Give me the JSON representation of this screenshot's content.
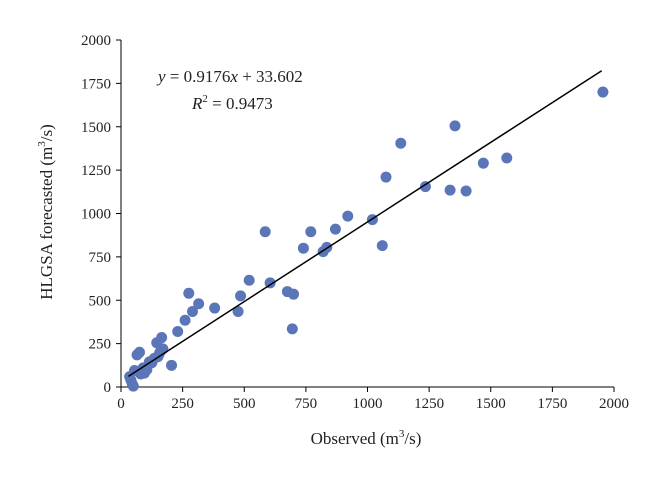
{
  "chart_data": {
    "type": "scatter",
    "xlabel_main": "Observed (m",
    "xlabel_sup": "3",
    "xlabel_end": "/s)",
    "ylabel_main": "HLGSA forecasted (m",
    "ylabel_sup": "3",
    "ylabel_end": "/s)",
    "xlim": [
      0,
      2000
    ],
    "ylim": [
      0,
      2000
    ],
    "xticks": [
      0,
      250,
      500,
      750,
      1000,
      1250,
      1500,
      1750,
      2000
    ],
    "yticks": [
      0,
      250,
      500,
      750,
      1000,
      1250,
      1500,
      1750,
      2000
    ],
    "grid": false,
    "marker_color": "#5b76b8",
    "trendline": {
      "slope": 0.9176,
      "intercept": 33.602,
      "x_start": 30,
      "x_end": 1950,
      "color": "#000000"
    },
    "equation": {
      "line1_y": "y",
      "line1_eq": " = 0.9176",
      "line1_x": "x",
      "line1_rest": " + 33.602",
      "line2_R": "R",
      "line2_sup": "2",
      "line2_rest": " = 0.9473"
    },
    "points": [
      {
        "x": 35,
        "y": 60
      },
      {
        "x": 40,
        "y": 40
      },
      {
        "x": 45,
        "y": 20
      },
      {
        "x": 50,
        "y": 5
      },
      {
        "x": 55,
        "y": 95
      },
      {
        "x": 65,
        "y": 185
      },
      {
        "x": 75,
        "y": 200
      },
      {
        "x": 80,
        "y": 75
      },
      {
        "x": 90,
        "y": 110
      },
      {
        "x": 95,
        "y": 80
      },
      {
        "x": 105,
        "y": 100
      },
      {
        "x": 115,
        "y": 145
      },
      {
        "x": 125,
        "y": 140
      },
      {
        "x": 135,
        "y": 165
      },
      {
        "x": 145,
        "y": 255
      },
      {
        "x": 150,
        "y": 175
      },
      {
        "x": 155,
        "y": 190
      },
      {
        "x": 160,
        "y": 205
      },
      {
        "x": 165,
        "y": 285
      },
      {
        "x": 170,
        "y": 220
      },
      {
        "x": 205,
        "y": 125
      },
      {
        "x": 230,
        "y": 320
      },
      {
        "x": 260,
        "y": 385
      },
      {
        "x": 275,
        "y": 540
      },
      {
        "x": 290,
        "y": 435
      },
      {
        "x": 315,
        "y": 480
      },
      {
        "x": 380,
        "y": 455
      },
      {
        "x": 475,
        "y": 435
      },
      {
        "x": 485,
        "y": 525
      },
      {
        "x": 520,
        "y": 615
      },
      {
        "x": 585,
        "y": 895
      },
      {
        "x": 605,
        "y": 600
      },
      {
        "x": 675,
        "y": 550
      },
      {
        "x": 695,
        "y": 335
      },
      {
        "x": 700,
        "y": 535
      },
      {
        "x": 740,
        "y": 800
      },
      {
        "x": 770,
        "y": 895
      },
      {
        "x": 820,
        "y": 780
      },
      {
        "x": 835,
        "y": 805
      },
      {
        "x": 870,
        "y": 910
      },
      {
        "x": 920,
        "y": 985
      },
      {
        "x": 1020,
        "y": 965
      },
      {
        "x": 1060,
        "y": 815
      },
      {
        "x": 1075,
        "y": 1210
      },
      {
        "x": 1135,
        "y": 1405
      },
      {
        "x": 1235,
        "y": 1155
      },
      {
        "x": 1335,
        "y": 1135
      },
      {
        "x": 1355,
        "y": 1505
      },
      {
        "x": 1400,
        "y": 1130
      },
      {
        "x": 1470,
        "y": 1290
      },
      {
        "x": 1565,
        "y": 1320
      },
      {
        "x": 1955,
        "y": 1700
      }
    ]
  }
}
